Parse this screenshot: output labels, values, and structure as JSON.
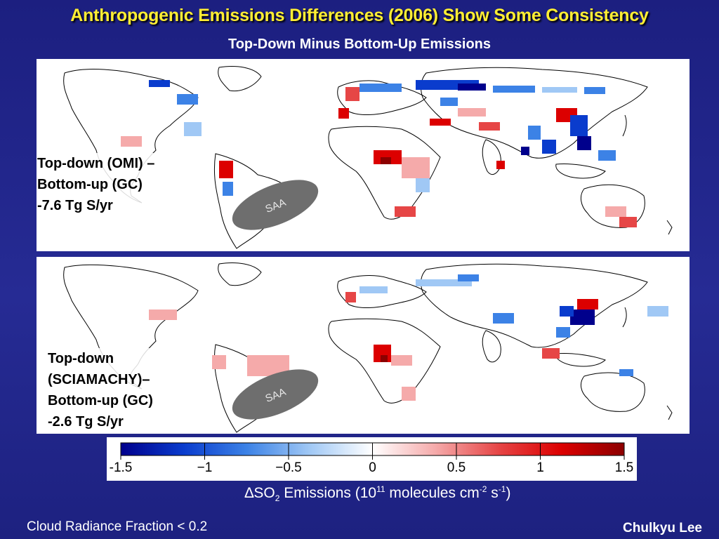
{
  "slide": {
    "title": "Anthropogenic Emissions Differences (2006) Show Some Consistency",
    "subtitle": "Top-Down Minus Bottom-Up Emissions"
  },
  "panels": [
    {
      "label_lines": [
        "Top-down (OMI) –",
        "Bottom-up (GC)",
        "-7.6 Tg S/yr"
      ],
      "saa_label": "SAA"
    },
    {
      "label_lines": [
        "Top-down",
        "(SCIAMACHY)–",
        "Bottom-up (GC)",
        "-2.6 Tg S/yr"
      ],
      "saa_label": "SAA"
    }
  ],
  "colorbar": {
    "ticks": [
      "-1.5",
      "−1",
      "−0.5",
      "0",
      "0.5",
      "1",
      "1.5"
    ],
    "tick_values": [
      -1.5,
      -1,
      -0.5,
      0,
      0.5,
      1,
      1.5
    ],
    "range": [
      -1.5,
      1.5
    ],
    "colors": [
      "#00008c",
      "#0a3ccd",
      "#3c82e6",
      "#a0c8f5",
      "#ffffff",
      "#f5aaaa",
      "#e64646",
      "#dc0000",
      "#8c0000"
    ]
  },
  "units": {
    "prefix": "∆SO",
    "sub": "2",
    "middle": " Emissions (10",
    "exp1": "11",
    "after_exp1": " molecules cm",
    "exp2": "-2",
    "mid2": " s",
    "exp3": "-1",
    "close": ")"
  },
  "footer": {
    "left": "Cloud Radiance Fraction < 0.2",
    "right": "Chulkyu Lee"
  }
}
